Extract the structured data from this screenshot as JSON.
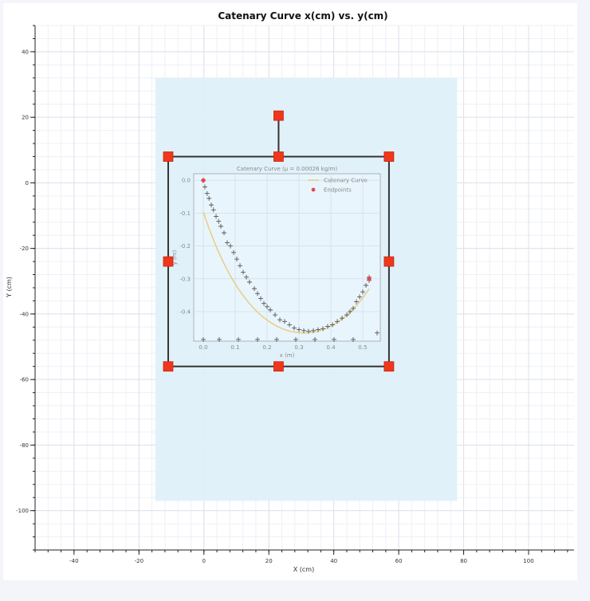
{
  "chart_data": {
    "type": "scatter",
    "title": "Catenary Curve x(cm) vs. y(cm)",
    "xlabel": "X (cm)",
    "ylabel": "Y (cm)",
    "xlim": [
      -52,
      114
    ],
    "ylim": [
      -112,
      48
    ],
    "xticks": [
      -40,
      -20,
      0,
      20,
      40,
      60,
      80,
      100
    ],
    "yticks": [
      40,
      20,
      0,
      -20,
      -40,
      -60,
      -80,
      -100
    ],
    "x_minor_step": 4,
    "y_minor_step": 4,
    "image_region": {
      "x": [
        -15,
        78
      ],
      "y": [
        -97,
        32
      ]
    },
    "roi_box": {
      "x": [
        -11,
        57
      ],
      "y": [
        -56,
        8
      ]
    },
    "rotate_handle": {
      "x": 23,
      "y": 20.5
    },
    "handles": [
      {
        "name": "handle-top-left",
        "x": -11,
        "y": 8
      },
      {
        "name": "handle-top-middle",
        "x": 23,
        "y": 8
      },
      {
        "name": "handle-top-right",
        "x": 57,
        "y": 8
      },
      {
        "name": "handle-middle-left",
        "x": -11,
        "y": -24
      },
      {
        "name": "handle-middle-right",
        "x": 57,
        "y": -24
      },
      {
        "name": "handle-bottom-left",
        "x": -11,
        "y": -56
      },
      {
        "name": "handle-bottom-middle",
        "x": 23,
        "y": -56
      },
      {
        "name": "handle-bottom-right",
        "x": 57,
        "y": -56
      },
      {
        "name": "handle-rotate",
        "x": 23,
        "y": 20.5
      }
    ],
    "inset_plot": {
      "title": "Catenary Curve (μ = 0.00026 kg/m)",
      "xlabel": "x (m)",
      "ylabel": "y (m)",
      "xlim": [
        -0.03,
        0.555
      ],
      "ylim": [
        -0.49,
        0.02
      ],
      "xticks": [
        0.0,
        0.1,
        0.2,
        0.3,
        0.4,
        0.5
      ],
      "xtick_labels": [
        "0.0",
        "0.1",
        "0.2",
        "0.3",
        "0.4",
        "0.5"
      ],
      "yticks": [
        0.0,
        -0.1,
        -0.2,
        -0.3,
        -0.4
      ],
      "ytick_labels": [
        "0.0",
        "-0.1",
        "-0.2",
        "-0.3",
        "-0.4"
      ],
      "legend": [
        "Catenary Curve",
        "Endpoints"
      ],
      "curve_color": "#e7cf8a",
      "endpoint_color": "#e8474a",
      "endpoints": [
        [
          0.0,
          0.0
        ],
        [
          0.52,
          -0.3
        ]
      ],
      "marker_points": [
        [
          0.0,
          0.0
        ],
        [
          0.005,
          -0.02
        ],
        [
          0.012,
          -0.04
        ],
        [
          0.018,
          -0.055
        ],
        [
          0.025,
          -0.075
        ],
        [
          0.032,
          -0.09
        ],
        [
          0.04,
          -0.11
        ],
        [
          0.048,
          -0.125
        ],
        [
          0.055,
          -0.14
        ],
        [
          0.065,
          -0.16
        ],
        [
          0.075,
          -0.19
        ],
        [
          0.085,
          -0.2
        ],
        [
          0.095,
          -0.22
        ],
        [
          0.105,
          -0.24
        ],
        [
          0.115,
          -0.26
        ],
        [
          0.125,
          -0.28
        ],
        [
          0.135,
          -0.295
        ],
        [
          0.145,
          -0.31
        ],
        [
          0.16,
          -0.33
        ],
        [
          0.17,
          -0.345
        ],
        [
          0.18,
          -0.36
        ],
        [
          0.19,
          -0.375
        ],
        [
          0.2,
          -0.385
        ],
        [
          0.21,
          -0.395
        ],
        [
          0.225,
          -0.41
        ],
        [
          0.24,
          -0.425
        ],
        [
          0.255,
          -0.43
        ],
        [
          0.27,
          -0.44
        ],
        [
          0.285,
          -0.45
        ],
        [
          0.3,
          -0.455
        ],
        [
          0.315,
          -0.458
        ],
        [
          0.33,
          -0.46
        ],
        [
          0.345,
          -0.458
        ],
        [
          0.36,
          -0.455
        ],
        [
          0.375,
          -0.452
        ],
        [
          0.39,
          -0.445
        ],
        [
          0.405,
          -0.44
        ],
        [
          0.42,
          -0.43
        ],
        [
          0.435,
          -0.42
        ],
        [
          0.45,
          -0.41
        ],
        [
          0.46,
          -0.4
        ],
        [
          0.47,
          -0.39
        ],
        [
          0.48,
          -0.37
        ],
        [
          0.49,
          -0.355
        ],
        [
          0.5,
          -0.34
        ],
        [
          0.51,
          -0.32
        ],
        [
          0.52,
          -0.305
        ],
        [
          0.52,
          -0.295
        ],
        [
          0.545,
          -0.465
        ],
        [
          0.0,
          -0.485
        ],
        [
          0.05,
          -0.485
        ],
        [
          0.11,
          -0.485
        ],
        [
          0.17,
          -0.485
        ],
        [
          0.23,
          -0.485
        ],
        [
          0.29,
          -0.485
        ],
        [
          0.35,
          -0.485
        ],
        [
          0.41,
          -0.485
        ],
        [
          0.47,
          -0.485
        ]
      ]
    }
  }
}
